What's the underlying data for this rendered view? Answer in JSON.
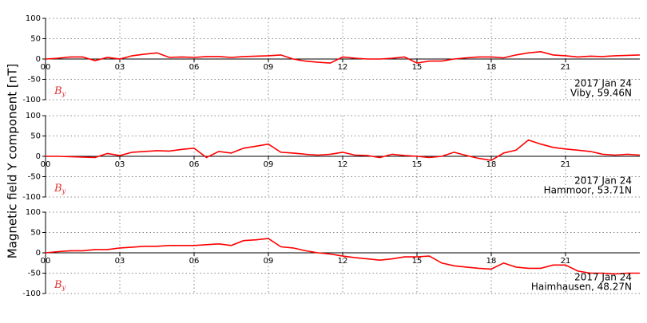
{
  "ylabel": "Magnetic field Y component [nT]",
  "chart_data": [
    {
      "type": "line",
      "date": "2017 Jan 24",
      "station": "Viby, 59.46N",
      "symbol": "B",
      "symbol_sub": "y",
      "color": "#ff0000",
      "x": [
        0,
        0.5,
        1,
        1.5,
        2,
        2.5,
        3,
        3.5,
        4,
        4.5,
        5,
        5.5,
        6,
        6.5,
        7,
        7.5,
        8,
        8.5,
        9,
        9.5,
        10,
        10.5,
        11,
        11.5,
        12,
        12.5,
        13,
        13.5,
        14,
        14.5,
        15,
        15.5,
        16,
        16.5,
        17,
        17.5,
        18,
        18.5,
        19,
        19.5,
        20,
        20.5,
        21,
        21.5,
        22,
        22.5,
        23,
        23.5,
        24
      ],
      "values": [
        0,
        2,
        5,
        5,
        -4,
        4,
        0,
        8,
        12,
        15,
        4,
        5,
        4,
        6,
        6,
        4,
        6,
        7,
        8,
        10,
        0,
        -5,
        -8,
        -10,
        5,
        2,
        0,
        0,
        2,
        5,
        -10,
        -5,
        -5,
        0,
        3,
        5,
        5,
        3,
        10,
        15,
        18,
        10,
        8,
        5,
        7,
        6,
        8,
        9,
        10
      ],
      "xlim": [
        0,
        24
      ],
      "xticks": [
        {
          "value": 0,
          "label": "00"
        },
        {
          "value": 3,
          "label": "03"
        },
        {
          "value": 6,
          "label": "06"
        },
        {
          "value": 9,
          "label": "09"
        },
        {
          "value": 12,
          "label": "12"
        },
        {
          "value": 15,
          "label": "15"
        },
        {
          "value": 18,
          "label": "18"
        },
        {
          "value": 21,
          "label": "21"
        }
      ],
      "ylim": [
        -100,
        100
      ],
      "yticks": [
        -100,
        -50,
        0,
        50,
        100
      ],
      "grid": true
    },
    {
      "type": "line",
      "date": "2017 Jan 24",
      "station": "Hammoor, 53.71N",
      "symbol": "B",
      "symbol_sub": "y",
      "color": "#ff0000",
      "x": [
        0,
        0.5,
        1,
        1.5,
        2,
        2.5,
        3,
        3.5,
        4,
        4.5,
        5,
        5.5,
        6,
        6.5,
        7,
        7.5,
        8,
        8.5,
        9,
        9.5,
        10,
        10.5,
        11,
        11.5,
        12,
        12.5,
        13,
        13.5,
        14,
        14.5,
        15,
        15.5,
        16,
        16.5,
        17,
        17.5,
        18,
        18.5,
        19,
        19.5,
        20,
        20.5,
        21,
        21.5,
        22,
        22.5,
        23,
        23.5,
        24
      ],
      "values": [
        0,
        0,
        -1,
        -2,
        -3,
        7,
        2,
        10,
        12,
        14,
        13,
        17,
        20,
        -3,
        12,
        8,
        20,
        25,
        30,
        10,
        8,
        5,
        3,
        5,
        10,
        3,
        2,
        -3,
        5,
        2,
        0,
        -3,
        0,
        10,
        2,
        -5,
        -10,
        8,
        15,
        40,
        30,
        22,
        18,
        15,
        12,
        5,
        3,
        5,
        3
      ],
      "xlim": [
        0,
        24
      ],
      "xticks": [
        {
          "value": 0,
          "label": "00"
        },
        {
          "value": 3,
          "label": "03"
        },
        {
          "value": 6,
          "label": "06"
        },
        {
          "value": 9,
          "label": "09"
        },
        {
          "value": 12,
          "label": "12"
        },
        {
          "value": 15,
          "label": "15"
        },
        {
          "value": 18,
          "label": "18"
        },
        {
          "value": 21,
          "label": "21"
        }
      ],
      "ylim": [
        -100,
        100
      ],
      "yticks": [
        -100,
        -50,
        0,
        50,
        100
      ],
      "grid": true
    },
    {
      "type": "line",
      "date": "2017 Jan 24",
      "station": "Haimhausen, 48.27N",
      "symbol": "B",
      "symbol_sub": "y",
      "color": "#ff0000",
      "x": [
        0,
        0.5,
        1,
        1.5,
        2,
        2.5,
        3,
        3.5,
        4,
        4.5,
        5,
        5.5,
        6,
        6.5,
        7,
        7.5,
        8,
        8.5,
        9,
        9.5,
        10,
        10.5,
        11,
        11.5,
        12,
        12.5,
        13,
        13.5,
        14,
        14.5,
        15,
        15.5,
        16,
        16.5,
        17,
        17.5,
        18,
        18.5,
        19,
        19.5,
        20,
        20.5,
        21,
        21.5,
        22,
        22.5,
        23,
        23.5,
        24
      ],
      "values": [
        0,
        3,
        5,
        5,
        8,
        8,
        12,
        14,
        16,
        16,
        18,
        18,
        18,
        20,
        22,
        18,
        30,
        32,
        35,
        15,
        12,
        5,
        0,
        -3,
        -8,
        -12,
        -15,
        -18,
        -15,
        -10,
        -10,
        -8,
        -25,
        -32,
        -35,
        -38,
        -40,
        -25,
        -35,
        -38,
        -38,
        -30,
        -30,
        -45,
        -50,
        -50,
        -52,
        -50,
        -50
      ],
      "xlim": [
        0,
        24
      ],
      "xticks": [
        {
          "value": 0,
          "label": "00"
        },
        {
          "value": 3,
          "label": "03"
        },
        {
          "value": 6,
          "label": "06"
        },
        {
          "value": 9,
          "label": "09"
        },
        {
          "value": 12,
          "label": "12"
        },
        {
          "value": 15,
          "label": "15"
        },
        {
          "value": 18,
          "label": "18"
        },
        {
          "value": 21,
          "label": "21"
        }
      ],
      "ylim": [
        -100,
        100
      ],
      "yticks": [
        -100,
        -50,
        0,
        50,
        100
      ],
      "grid": true
    }
  ]
}
